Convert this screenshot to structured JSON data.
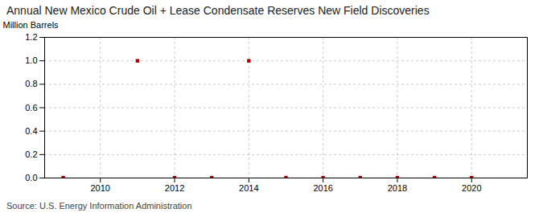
{
  "chart_data": {
    "type": "scatter",
    "title": "Annual New Mexico Crude Oil + Lease Condensate Reserves New Field Discoveries",
    "ylabel": "Million Barrels",
    "source": "Source: U.S. Energy Information Administration",
    "x": [
      2009,
      2011,
      2012,
      2013,
      2014,
      2015,
      2016,
      2017,
      2018,
      2019,
      2020
    ],
    "values": [
      0.003,
      1.0,
      0.003,
      0.003,
      1.0,
      0.003,
      0.003,
      0.003,
      0.003,
      0.003,
      0.003
    ],
    "color": "#aa0000",
    "marker": "square",
    "grid": true,
    "xlim": [
      2008.5,
      2021.5
    ],
    "ylim": [
      0.0,
      1.2
    ],
    "xticks": [
      2010,
      2012,
      2014,
      2016,
      2018,
      2020
    ],
    "yticks": [
      {
        "value": 0.0,
        "label": "0.0"
      },
      0.2,
      0.4,
      0.6,
      0.8,
      {
        "value": 1.0,
        "label": "1.0"
      },
      1.2
    ]
  }
}
